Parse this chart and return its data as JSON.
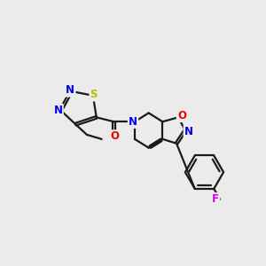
{
  "bg_color": "#ebebeb",
  "bond_color": "#1a1a1a",
  "bond_width": 1.6,
  "atom_colors": {
    "N": "#0000ee",
    "O": "#ee0000",
    "S": "#bbbb00",
    "F": "#dd00dd",
    "C": "#1a1a1a"
  },
  "font_size": 8.5
}
